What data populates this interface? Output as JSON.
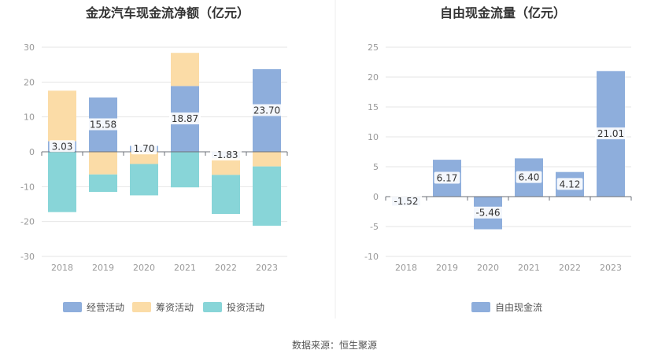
{
  "source": "数据来源：恒生聚源",
  "colors": {
    "operating": "#8eaedc",
    "financing": "#fbdca7",
    "investing": "#88d5d8",
    "fcf": "#8eaedc",
    "datalabel_bg": "#ffffff"
  },
  "chart_data": [
    {
      "type": "bar",
      "stacked": true,
      "title": "金龙汽车现金流净额（亿元）",
      "categories": [
        "2018",
        "2019",
        "2020",
        "2021",
        "2022",
        "2023"
      ],
      "ylim": [
        -30,
        30
      ],
      "yticks": [
        "30",
        "20",
        "10",
        "0",
        "-10",
        "-20",
        "-30"
      ],
      "legend_position": "bottom",
      "series": [
        {
          "name": "经营活动",
          "values": [
            3.03,
            15.58,
            1.7,
            18.87,
            -1.83,
            23.7
          ],
          "labels": [
            "3.03",
            "15.58",
            "1.70",
            "18.87",
            "-1.83",
            "23.70"
          ]
        },
        {
          "name": "筹资活动",
          "values": [
            14.5,
            -6.5,
            -3.5,
            9.5,
            -4.8,
            -4.2
          ]
        },
        {
          "name": "投资活动",
          "values": [
            -17.3,
            -5.0,
            -9.0,
            -10.2,
            -11.2,
            -17.0
          ]
        }
      ]
    },
    {
      "type": "bar",
      "title": "自由现金流量（亿元）",
      "categories": [
        "2018",
        "2019",
        "2020",
        "2021",
        "2022",
        "2023"
      ],
      "ylim": [
        -10,
        25
      ],
      "yticks": [
        "25",
        "20",
        "15",
        "10",
        "5",
        "0",
        "-5",
        "-10"
      ],
      "legend_position": "bottom",
      "series": [
        {
          "name": "自由现金流",
          "values": [
            -1.52,
            6.17,
            -5.46,
            6.4,
            4.12,
            21.01
          ],
          "labels": [
            "-1.52",
            "6.17",
            "-5.46",
            "6.40",
            "4.12",
            "21.01"
          ]
        }
      ]
    }
  ]
}
